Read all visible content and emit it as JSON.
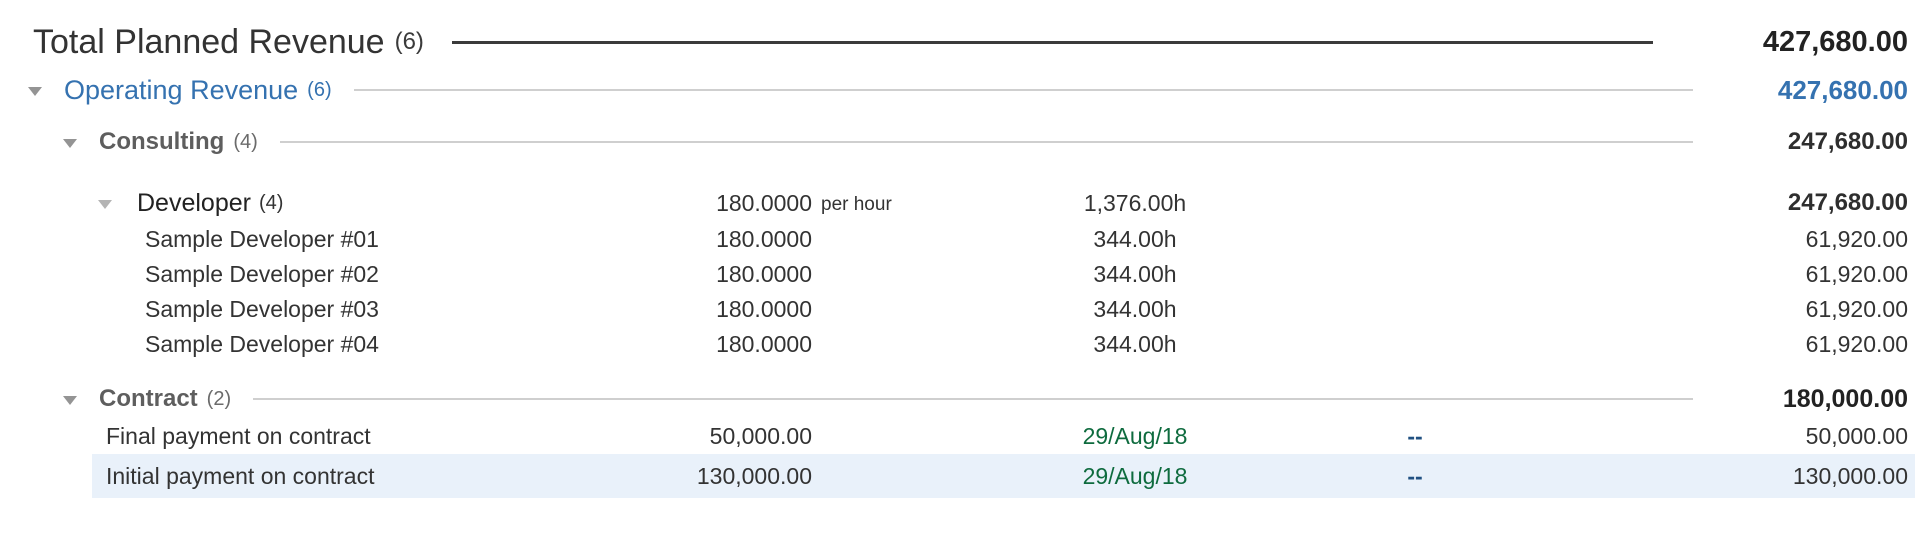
{
  "panel": {
    "total": {
      "label": "Total Planned Revenue",
      "count": "(6)",
      "value": "427,680.00"
    },
    "operating": {
      "label": "Operating Revenue",
      "count": "(6)",
      "value": "427,680.00"
    },
    "consulting": {
      "label": "Consulting",
      "count": "(4)",
      "value": "247,680.00"
    },
    "developer": {
      "label": "Developer",
      "count": "(4)",
      "rate": "180.0000",
      "rate_unit": "per hour",
      "hours": "1,376.00h",
      "value": "247,680.00"
    },
    "developer_rows": [
      {
        "name": "Sample Developer #01",
        "rate": "180.0000",
        "hours": "344.00h",
        "value": "61,920.00"
      },
      {
        "name": "Sample Developer #02",
        "rate": "180.0000",
        "hours": "344.00h",
        "value": "61,920.00"
      },
      {
        "name": "Sample Developer #03",
        "rate": "180.0000",
        "hours": "344.00h",
        "value": "61,920.00"
      },
      {
        "name": "Sample Developer #04",
        "rate": "180.0000",
        "hours": "344.00h",
        "value": "61,920.00"
      }
    ],
    "contract": {
      "label": "Contract",
      "count": "(2)",
      "value": "180,000.00"
    },
    "contract_rows": [
      {
        "name": "Final payment on contract",
        "amount": "50,000.00",
        "date": "29/Aug/18",
        "dash": "--",
        "value": "50,000.00",
        "highlighted": false
      },
      {
        "name": "Initial payment on contract",
        "amount": "130,000.00",
        "date": "29/Aug/18",
        "dash": "--",
        "value": "130,000.00",
        "highlighted": true
      }
    ],
    "colors": {
      "accent_blue": "#3572b0",
      "date_green": "#0e6b3e",
      "dash_navy": "#205081",
      "highlight_row": "#e9f1fa",
      "section_gray": "#5e5e5e"
    }
  }
}
